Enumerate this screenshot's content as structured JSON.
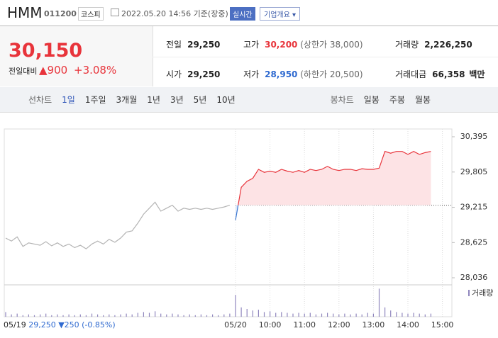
{
  "header": {
    "name": "HMM",
    "code": "011200",
    "market": "코스피",
    "time": "2022.05.20 14:56 기준(장중)",
    "realtime": "실시간",
    "company": "기업개요"
  },
  "quote": {
    "price": "30,150",
    "change_label": "전일대비",
    "change": "900",
    "change_pct": "+3.08%",
    "stats": [
      {
        "label": "전일",
        "value": "29,250"
      },
      {
        "label": "고가",
        "value": "30,200",
        "note": "(상한가 38,000)"
      },
      {
        "label": "거래량",
        "value": "2,226,250"
      },
      {
        "label": "시가",
        "value": "29,250"
      },
      {
        "label": "저가",
        "value": "28,950",
        "note": "(하한가 20,500)"
      },
      {
        "label": "거래대금",
        "value": "66,358",
        "unit": "백만"
      }
    ]
  },
  "tabs": {
    "line_label": "선차트",
    "line": [
      "1일",
      "1주일",
      "3개월",
      "1년",
      "3년",
      "5년",
      "10년"
    ],
    "candle_label": "봉차트",
    "candle": [
      "일봉",
      "주봉",
      "월봉"
    ]
  },
  "footer": {
    "date": "05/19",
    "close": "29,250",
    "change": "250",
    "change_pct": "(-0.85%)"
  },
  "chart_data": [
    {
      "type": "line",
      "categories": [
        null,
        null,
        null,
        null,
        null,
        null,
        null,
        null,
        null,
        null,
        null,
        null,
        null,
        null,
        null,
        null,
        null,
        null,
        null,
        null,
        null,
        null,
        null,
        null,
        null,
        null,
        null,
        null,
        null,
        null,
        null,
        null,
        null,
        null,
        null,
        null,
        null,
        null,
        null,
        null,
        "05/20",
        null,
        null,
        null,
        null,
        null,
        "10:00",
        null,
        null,
        null,
        null,
        null,
        "11:00",
        null,
        null,
        null,
        null,
        null,
        "12:00",
        null,
        null,
        null,
        null,
        null,
        "13:00",
        null,
        null,
        null,
        null,
        null,
        "14:00",
        null,
        null,
        null,
        null,
        null,
        "15:00"
      ],
      "series": [
        {
          "color": "#b4b4b4",
          "values": [
            28700,
            28650,
            28720,
            28560,
            28620,
            28600,
            28580,
            28640,
            28570,
            28620,
            28560,
            28600,
            28540,
            28580,
            28520,
            28600,
            28650,
            28600,
            28680,
            28630,
            28700,
            28800,
            28820,
            28950,
            29100,
            29200,
            29300,
            29150,
            29200,
            29250,
            29150,
            29200,
            29180,
            29200,
            29180,
            29200,
            29180,
            29200,
            29220,
            29250,
            null,
            null,
            null,
            null,
            null,
            null,
            null,
            null,
            null,
            null,
            null,
            null,
            null,
            null,
            null,
            null,
            null,
            null,
            null,
            null,
            null,
            null,
            null,
            null,
            null,
            null,
            null,
            null,
            null,
            null,
            null,
            null,
            null,
            null,
            null,
            null,
            null
          ]
        },
        {
          "color": "#e8343b",
          "down_color": "#3a76d0",
          "fill": "#fde3e5",
          "down_fill": "#dce8fa",
          "values": [
            null,
            null,
            null,
            null,
            null,
            null,
            null,
            null,
            null,
            null,
            null,
            null,
            null,
            null,
            null,
            null,
            null,
            null,
            null,
            null,
            null,
            null,
            null,
            null,
            null,
            null,
            null,
            null,
            null,
            null,
            null,
            null,
            null,
            null,
            null,
            null,
            null,
            null,
            null,
            null,
            29000,
            29550,
            29650,
            29700,
            29850,
            29800,
            29820,
            29800,
            29850,
            29820,
            29800,
            29830,
            29800,
            29850,
            29830,
            29850,
            29900,
            29850,
            29830,
            29850,
            29850,
            29830,
            29860,
            29850,
            29850,
            29870,
            30150,
            30120,
            30150,
            30150,
            30100,
            30150,
            30100,
            30130,
            30150,
            null,
            null
          ]
        }
      ],
      "reference": 29250,
      "ylim": [
        28036,
        30395
      ],
      "yticks": [
        {
          "value": 28036,
          "label": "28,036"
        },
        {
          "value": 28625,
          "label": "28,625"
        },
        {
          "value": 29215,
          "label": "29,215"
        },
        {
          "value": 29805,
          "label": "29,805"
        },
        {
          "value": 30395,
          "label": "30,395"
        }
      ],
      "grid": true
    },
    {
      "type": "bar",
      "series": [
        {
          "name": "거래량",
          "color": "#8f86bd",
          "values": [
            6,
            3,
            4,
            2,
            3,
            2,
            3,
            4,
            2,
            3,
            2,
            3,
            2,
            3,
            2,
            4,
            3,
            2,
            3,
            2,
            3,
            4,
            3,
            5,
            6,
            5,
            7,
            4,
            3,
            4,
            3,
            2,
            3,
            2,
            3,
            2,
            3,
            2,
            3,
            4,
            28,
            12,
            10,
            8,
            9,
            6,
            7,
            5,
            6,
            5,
            4,
            5,
            4,
            5,
            3,
            4,
            5,
            4,
            3,
            4,
            3,
            4,
            3,
            5,
            4,
            36,
            12,
            8,
            6,
            5,
            4,
            5,
            4,
            3,
            4,
            null,
            null
          ]
        }
      ],
      "ylim": [
        0,
        40
      ]
    }
  ]
}
